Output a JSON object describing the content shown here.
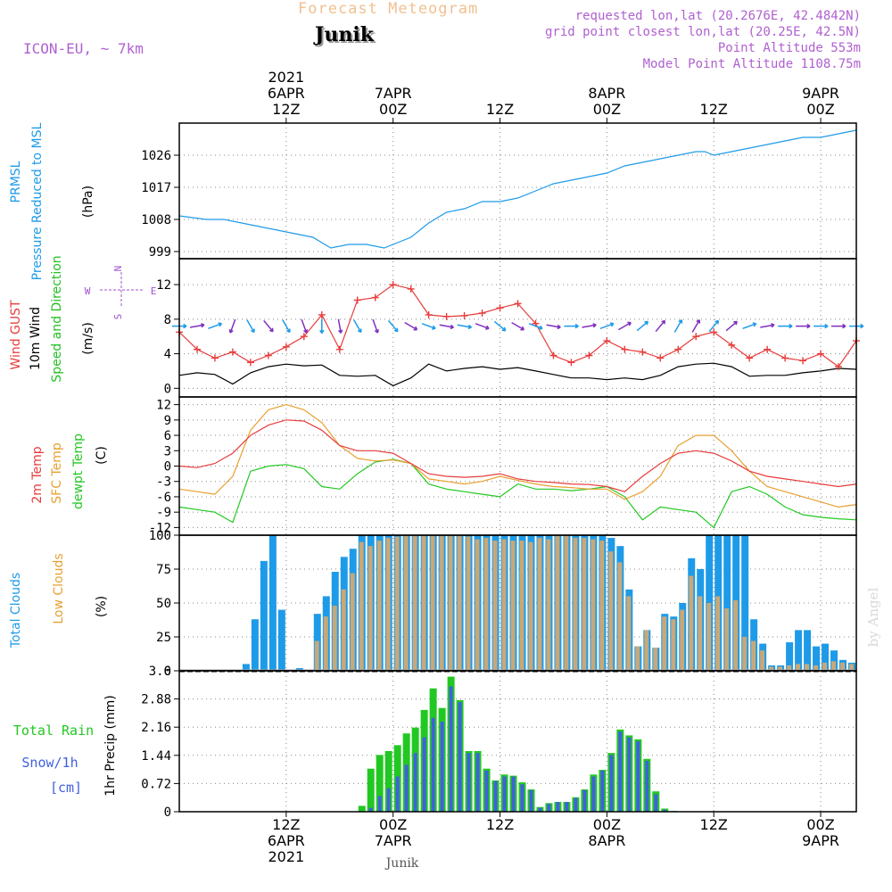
{
  "header": {
    "title": "Forecast Meteogram",
    "station": "Junik",
    "model": "ICON-EU, ~ 7km",
    "requested": "requested lon,lat (20.2676E, 42.4842N)",
    "grid_point": "grid point closest lon,lat (20.25E, 42.5N)",
    "point_alt": "Point Altitude 553m",
    "model_alt": "Model Point Altitude 1108.75m",
    "footer": "Junik",
    "credit": "by Angel"
  },
  "colors": {
    "pressure": "#1e9be8",
    "gust": "#e83c3c",
    "wind": "#000000",
    "wind_label": "#22c022",
    "sfc": "#e8a030",
    "dew": "#22c822",
    "total_clouds": "#1e9be8",
    "low_clouds": "#c8a878",
    "rain": "#22c822",
    "snow": "#4060e0",
    "arrow_purple": "#8030c0",
    "arrow_blue": "#1e9be8",
    "compass": "#a050d0",
    "header_purple": "#b060d0",
    "title_orange": "#f0c090"
  },
  "time_axis": {
    "top_year": "2021",
    "top_labels": [
      {
        "t": 12,
        "date": "6APR",
        "hour": "12Z"
      },
      {
        "t": 24,
        "date": "7APR",
        "hour": "00Z"
      },
      {
        "t": 36,
        "date": "",
        "hour": "12Z"
      },
      {
        "t": 48,
        "date": "8APR",
        "hour": "00Z"
      },
      {
        "t": 60,
        "date": "",
        "hour": "12Z"
      },
      {
        "t": 72,
        "date": "9APR",
        "hour": "00Z"
      }
    ],
    "bottom_year": "2021",
    "bottom_labels": [
      {
        "t": 12,
        "hour": "12Z",
        "date": "6APR"
      },
      {
        "t": 24,
        "hour": "00Z",
        "date": "7APR"
      },
      {
        "t": 36,
        "hour": "12Z",
        "date": ""
      },
      {
        "t": 48,
        "hour": "00Z",
        "date": "8APR"
      },
      {
        "t": 60,
        "hour": "12Z",
        "date": ""
      },
      {
        "t": 72,
        "hour": "00Z",
        "date": "9APR"
      }
    ]
  },
  "chart_data": [
    {
      "type": "line",
      "title": "PRMSL Pressure Reduced to MSL",
      "ylabel_lines": [
        "PRMSL",
        "Pressure Reduced to MSL"
      ],
      "unit": "(hPa)",
      "yticks": [
        "1026",
        "1017",
        "1008",
        "999"
      ],
      "ylim": [
        997,
        1035
      ],
      "t": [
        0,
        3,
        5,
        7,
        9,
        11,
        13,
        15,
        17,
        19,
        21,
        23,
        24,
        26,
        28,
        30,
        32,
        34,
        36,
        38,
        40,
        42,
        44,
        46,
        48,
        50,
        52,
        54,
        56,
        58,
        59,
        60,
        62,
        64,
        66,
        68,
        70,
        72,
        74,
        76
      ],
      "values": [
        1009,
        1008,
        1008,
        1007,
        1006,
        1005,
        1004,
        1003,
        1000,
        1001,
        1001,
        1000,
        1001,
        1003,
        1007,
        1010,
        1011,
        1013,
        1013,
        1014,
        1016,
        1018,
        1019,
        1020,
        1021,
        1023,
        1024,
        1025,
        1026,
        1027,
        1027,
        1026,
        1027,
        1028,
        1029,
        1030,
        1031,
        1031,
        1032,
        1033
      ]
    },
    {
      "type": "line",
      "title": "Wind GUST / 10m Wind Speed and Direction",
      "ylabel_lines": [
        "Wind GUST",
        "10m Wind",
        "Speed and Direction"
      ],
      "unit": "(m/s)",
      "yticks": [
        "12",
        "8",
        "4",
        "0"
      ],
      "ylim": [
        -1,
        15
      ],
      "compass": {
        "n": "N",
        "s": "S",
        "e": "E",
        "w": "W"
      },
      "t": [
        0,
        2,
        4,
        6,
        8,
        10,
        12,
        14,
        16,
        18,
        20,
        22,
        24,
        26,
        28,
        30,
        32,
        34,
        36,
        38,
        40,
        42,
        44,
        46,
        48,
        50,
        52,
        54,
        56,
        58,
        60,
        62,
        64,
        66,
        68,
        70,
        72,
        74,
        76
      ],
      "gust": [
        6.5,
        4.5,
        3.5,
        4.2,
        3.0,
        3.8,
        4.8,
        6.0,
        8.5,
        4.5,
        10.2,
        10.5,
        12.0,
        11.5,
        8.5,
        8.3,
        8.4,
        8.7,
        9.3,
        9.8,
        7.5,
        3.8,
        3.0,
        3.8,
        5.5,
        4.5,
        4.2,
        3.5,
        4.5,
        6.0,
        6.5,
        5.0,
        3.5,
        4.5,
        3.5,
        3.2,
        4.0,
        2.5,
        5.5
      ],
      "wind": [
        1.5,
        1.8,
        1.6,
        0.5,
        1.8,
        2.5,
        2.8,
        2.6,
        2.7,
        1.5,
        1.4,
        1.5,
        0.3,
        1.2,
        2.8,
        2.0,
        2.3,
        2.5,
        2.2,
        2.4,
        2.0,
        1.6,
        1.2,
        1.2,
        1.0,
        1.2,
        1.0,
        1.5,
        2.5,
        2.8,
        2.9,
        2.5,
        1.4,
        1.5,
        1.5,
        1.8,
        2.0,
        2.3,
        2.2
      ],
      "direction_deg": [
        90,
        80,
        70,
        200,
        150,
        140,
        150,
        160,
        180,
        170,
        150,
        160,
        140,
        120,
        110,
        100,
        100,
        110,
        130,
        120,
        110,
        100,
        90,
        80,
        70,
        60,
        50,
        40,
        30,
        30,
        40,
        50,
        70,
        80,
        90,
        90,
        90,
        90,
        90
      ]
    },
    {
      "type": "line",
      "title": "2m Temp / SFC Temp / dewpt Temp",
      "ylabel_lines": [
        "2m Temp",
        "SFC Temp",
        "dewpt Temp"
      ],
      "unit": "(C)",
      "yticks": [
        "12",
        "9",
        "6",
        "3",
        "0",
        "-3",
        "-6",
        "-9",
        "-12"
      ],
      "ylim": [
        -13.5,
        13.5
      ],
      "t": [
        0,
        2,
        4,
        6,
        8,
        10,
        12,
        14,
        16,
        18,
        20,
        22,
        24,
        26,
        28,
        30,
        32,
        34,
        36,
        38,
        40,
        42,
        44,
        46,
        48,
        50,
        52,
        54,
        56,
        58,
        60,
        62,
        64,
        66,
        68,
        70,
        72,
        74,
        76
      ],
      "temp2m": [
        0.0,
        -0.3,
        0.5,
        2.5,
        6.0,
        8.0,
        9.0,
        8.8,
        7.0,
        4.0,
        3.0,
        3.0,
        2.5,
        0.5,
        -1.5,
        -2.0,
        -2.2,
        -2.0,
        -1.5,
        -2.5,
        -3.0,
        -3.2,
        -3.5,
        -3.6,
        -4.0,
        -5.0,
        -2.0,
        0.5,
        2.5,
        3.0,
        2.5,
        1.0,
        -1.0,
        -2.0,
        -2.5,
        -3.0,
        -3.5,
        -4.0,
        -3.5
      ],
      "sfc": [
        -4.5,
        -5.0,
        -5.5,
        -2.0,
        7.0,
        11.0,
        12.0,
        11.0,
        8.5,
        4.0,
        1.5,
        1.0,
        1.2,
        0.5,
        -2.5,
        -3.0,
        -3.5,
        -3.0,
        -2.0,
        -2.8,
        -3.5,
        -4.0,
        -4.2,
        -4.5,
        -4.5,
        -6.5,
        -5.0,
        -2.0,
        4.0,
        6.0,
        6.0,
        3.0,
        -1.0,
        -4.0,
        -5.0,
        -6.0,
        -7.0,
        -8.0,
        -7.5
      ],
      "dewpt": [
        -8.0,
        -8.5,
        -9.0,
        -11.0,
        -1.0,
        0.0,
        0.3,
        -0.5,
        -4.0,
        -4.5,
        -1.5,
        0.8,
        1.3,
        0.5,
        -3.5,
        -4.5,
        -5.0,
        -5.5,
        -6.0,
        -3.5,
        -4.5,
        -4.5,
        -4.8,
        -4.5,
        -4.0,
        -6.0,
        -10.5,
        -8.0,
        -8.5,
        -9.0,
        -12.0,
        -5.0,
        -4.0,
        -5.5,
        -8.0,
        -9.5,
        -10.0,
        -10.3,
        -10.5
      ]
    },
    {
      "type": "bar",
      "title": "Total Clouds / Low Clouds",
      "ylabel_lines": [
        "Total Clouds",
        "Low Clouds"
      ],
      "unit": "(%)",
      "yticks": [
        "100",
        "75",
        "50",
        "25",
        "0"
      ],
      "ylim": [
        0,
        100
      ],
      "t": [
        0,
        1,
        2,
        3,
        4,
        5,
        6,
        7,
        8,
        9,
        10,
        11,
        12,
        13,
        14,
        15,
        16,
        17,
        18,
        19,
        20,
        21,
        22,
        23,
        24,
        25,
        26,
        27,
        28,
        29,
        30,
        31,
        32,
        33,
        34,
        35,
        36,
        37,
        38,
        39,
        40,
        41,
        42,
        43,
        44,
        45,
        46,
        47,
        48,
        49,
        50,
        51,
        52,
        53,
        54,
        55,
        56,
        57,
        58,
        59,
        60,
        61,
        62,
        63,
        64,
        65,
        66,
        67,
        68,
        69,
        70,
        71,
        72,
        73,
        74,
        75
      ],
      "total": [
        0,
        0,
        0,
        0,
        0,
        0,
        0,
        5,
        38,
        81,
        100,
        45,
        0,
        2,
        1,
        42,
        55,
        73,
        84,
        90,
        100,
        100,
        100,
        100,
        100,
        100,
        100,
        100,
        100,
        100,
        100,
        100,
        100,
        100,
        100,
        100,
        100,
        100,
        100,
        100,
        100,
        100,
        100,
        100,
        100,
        100,
        100,
        100,
        98,
        92,
        60,
        18,
        30,
        17,
        42,
        40,
        50,
        83,
        75,
        100,
        100,
        100,
        100,
        100,
        38,
        20,
        4,
        4,
        21,
        30,
        30,
        18,
        20,
        15,
        8,
        6
      ],
      "low": [
        0,
        0,
        0,
        0,
        0,
        0,
        0,
        0,
        0,
        0,
        0,
        0,
        0,
        0,
        0,
        22,
        40,
        48,
        60,
        72,
        95,
        92,
        96,
        98,
        99,
        100,
        100,
        100,
        100,
        100,
        100,
        100,
        99,
        97,
        98,
        96,
        97,
        96,
        96,
        95,
        98,
        97,
        100,
        100,
        98,
        98,
        97,
        96,
        88,
        80,
        55,
        18,
        30,
        17,
        40,
        38,
        45,
        70,
        55,
        50,
        55,
        46,
        52,
        25,
        22,
        15,
        3,
        3,
        4,
        5,
        5,
        4,
        6,
        7,
        6,
        5
      ]
    },
    {
      "type": "bar",
      "title": "Total Rain / Snow/1h",
      "ylabel_lines": [
        "Total Rain",
        "Snow/1h",
        "[cm]"
      ],
      "unit": "1hr Precip (mm)",
      "yticks": [
        "3.6",
        "2.88",
        "2.16",
        "1.44",
        "0.72",
        "0"
      ],
      "ylim": [
        0,
        3.6
      ],
      "t": [
        0,
        1,
        2,
        3,
        4,
        5,
        6,
        7,
        8,
        9,
        10,
        11,
        12,
        13,
        14,
        15,
        16,
        17,
        18,
        19,
        20,
        21,
        22,
        23,
        24,
        25,
        26,
        27,
        28,
        29,
        30,
        31,
        32,
        33,
        34,
        35,
        36,
        37,
        38,
        39,
        40,
        41,
        42,
        43,
        44,
        45,
        46,
        47,
        48,
        49,
        50,
        51,
        52,
        53,
        54,
        55,
        56,
        57,
        58,
        59,
        60,
        61,
        62,
        63,
        64,
        65,
        66,
        67,
        68,
        69,
        70,
        71,
        72,
        73,
        74,
        75
      ],
      "rain": [
        0,
        0,
        0,
        0,
        0,
        0,
        0,
        0,
        0,
        0,
        0,
        0,
        0,
        0,
        0,
        0,
        0,
        0,
        0,
        0,
        0.15,
        1.1,
        1.45,
        1.55,
        1.7,
        2.0,
        2.15,
        2.6,
        3.15,
        2.65,
        3.45,
        2.85,
        1.55,
        1.55,
        1.1,
        0.8,
        0.95,
        0.92,
        0.75,
        0.57,
        0.12,
        0.22,
        0.25,
        0.25,
        0.37,
        0.57,
        0.95,
        1.07,
        1.5,
        2.1,
        1.95,
        1.85,
        1.35,
        0.52,
        0.08,
        0.02,
        0,
        0,
        0,
        0,
        0,
        0,
        0,
        0,
        0,
        0,
        0,
        0,
        0,
        0,
        0,
        0,
        0,
        0,
        0,
        0
      ],
      "snow": [
        0,
        0,
        0,
        0,
        0,
        0,
        0,
        0,
        0,
        0,
        0,
        0,
        0,
        0,
        0,
        0,
        0,
        0,
        0,
        0,
        0,
        0.1,
        0.4,
        0.6,
        0.9,
        1.2,
        1.5,
        1.9,
        2.4,
        2.3,
        3.2,
        2.8,
        1.5,
        1.5,
        1.05,
        0.78,
        0.9,
        0.9,
        0.7,
        0.55,
        0.1,
        0.2,
        0.25,
        0.25,
        0.35,
        0.55,
        0.9,
        1.05,
        1.45,
        2.05,
        1.9,
        1.8,
        1.3,
        0.45,
        0.05,
        0,
        0,
        0,
        0,
        0,
        0,
        0,
        0,
        0,
        0,
        0,
        0,
        0,
        0,
        0,
        0,
        0,
        0,
        0,
        0,
        0
      ]
    }
  ]
}
